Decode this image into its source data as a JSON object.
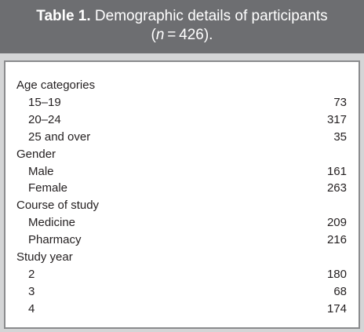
{
  "header": {
    "label": "Table 1.",
    "caption": "Demographic details of participants",
    "sample": {
      "open": "(",
      "variable": "n",
      "value": " = 426",
      "close": ")."
    }
  },
  "table": {
    "groups": [
      {
        "label": "Age categories",
        "rows": [
          {
            "label": "15–19",
            "value": 73
          },
          {
            "label": "20–24",
            "value": 317
          },
          {
            "label": "25 and over",
            "value": 35
          }
        ]
      },
      {
        "label": "Gender",
        "rows": [
          {
            "label": "Male",
            "value": 161
          },
          {
            "label": "Female",
            "value": 263
          }
        ]
      },
      {
        "label": "Course of study",
        "rows": [
          {
            "label": "Medicine",
            "value": 209
          },
          {
            "label": "Pharmacy",
            "value": 216
          }
        ]
      },
      {
        "label": "Study year",
        "rows": [
          {
            "label": "2",
            "value": 180
          },
          {
            "label": "3",
            "value": 68
          },
          {
            "label": "4",
            "value": 174
          }
        ]
      }
    ]
  }
}
